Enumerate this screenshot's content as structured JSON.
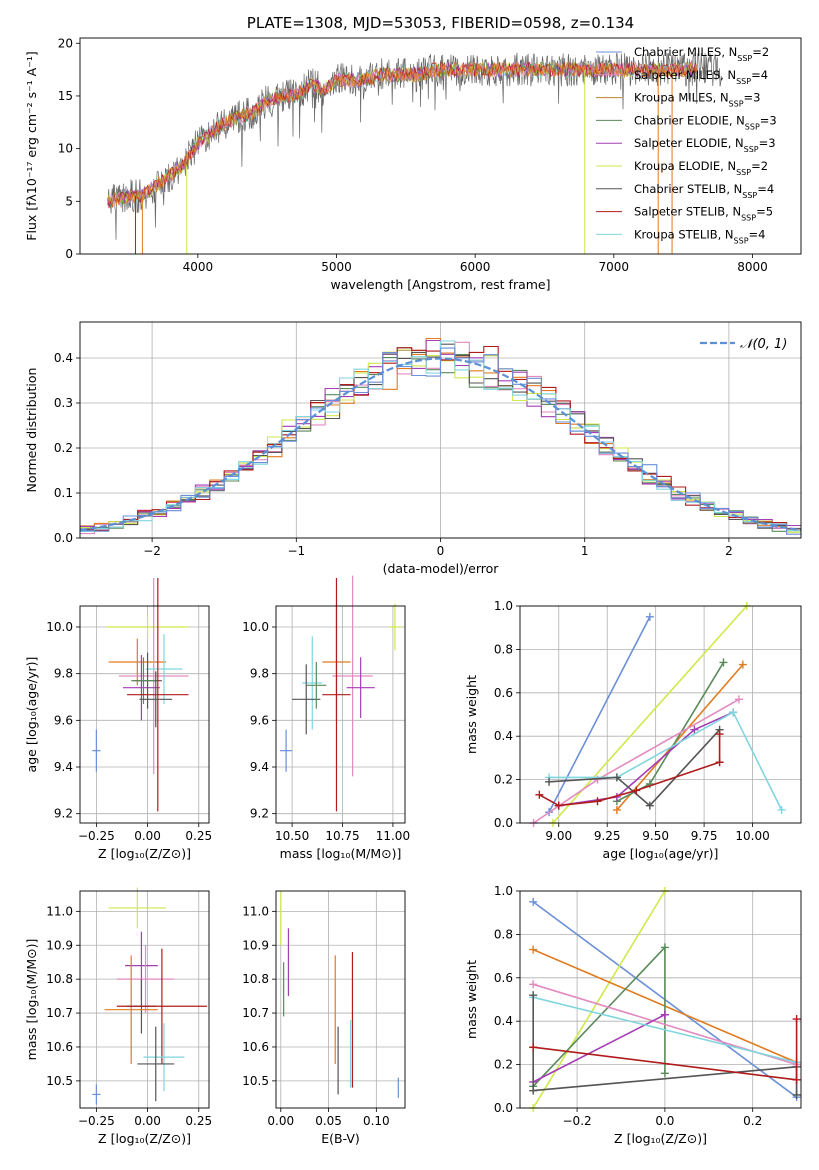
{
  "title": "PLATE=1308, MJD=53053, FIBERID=0598, z=0.134",
  "colors": {
    "c0": "#6b8fd8",
    "c1": "#e07b20",
    "c2": "#b8862a",
    "c3": "#5a8a5a",
    "c4": "#a53db5",
    "c5": "#cfe84a",
    "c6": "#555555",
    "c7": "#b01b1b",
    "c8": "#7fd6df",
    "c9": "#e38bc0"
  },
  "spectrum": {
    "xlabel": "wavelength [Angstrom, rest frame]",
    "ylabel": "Flux [fλ10⁻¹⁷ erg cm⁻² s⁻¹ A⁻¹]",
    "xticks": [
      "4000",
      "5000",
      "6000",
      "7000",
      "8000"
    ],
    "yticks": [
      "0",
      "5",
      "10",
      "15",
      "20"
    ],
    "legend": [
      {
        "text": "Chabrier MILES, N",
        "sub": "SSP",
        "tail": "=2",
        "color": "#6b8fd8"
      },
      {
        "text": "Salpeter MILES, N",
        "sub": "SSP",
        "tail": "=4",
        "color": "#e38bc0"
      },
      {
        "text": "Kroupa MILES, N",
        "sub": "SSP",
        "tail": "=3",
        "color": "#b8862a"
      },
      {
        "text": "Chabrier ELODIE, N",
        "sub": "SSP",
        "tail": "=3",
        "color": "#5a8a5a"
      },
      {
        "text": "Salpeter ELODIE, N",
        "sub": "SSP",
        "tail": "=3",
        "color": "#a53db5"
      },
      {
        "text": "Kroupa ELODIE, N",
        "sub": "SSP",
        "tail": "=2",
        "color": "#cfe84a"
      },
      {
        "text": "Chabrier STELIB, N",
        "sub": "SSP",
        "tail": "=4",
        "color": "#555555"
      },
      {
        "text": "Salpeter STELIB, N",
        "sub": "SSP",
        "tail": "=5",
        "color": "#b01b1b"
      },
      {
        "text": "Kroupa STELIB, N",
        "sub": "SSP",
        "tail": "=4",
        "color": "#7fd6df"
      }
    ]
  },
  "residuals": {
    "xlabel": "(data-model)/error",
    "ylabel": "Normed distribution",
    "xticks": [
      "−2",
      "−1",
      "0",
      "1",
      "2"
    ],
    "yticks": [
      "0.0",
      "0.1",
      "0.2",
      "0.3",
      "0.4"
    ],
    "legend": "𝒩(0, 1)"
  },
  "p3": {
    "xlabel": "Z [log₁₀(Z/Z⊙)]",
    "ylabel": "age  [log₁₀(age/yr)]",
    "xticks": [
      "−0.25",
      "0.00",
      "0.25"
    ],
    "yticks": [
      "9.2",
      "9.4",
      "9.6",
      "9.8",
      "10.0"
    ]
  },
  "p4": {
    "xlabel": "mass [log₁₀(M/M⊙)]",
    "xticks": [
      "10.50",
      "10.75",
      "11.00"
    ],
    "yticks": [
      "9.2",
      "9.4",
      "9.6",
      "9.8",
      "10.0"
    ]
  },
  "p5": {
    "xlabel": "age  [log₁₀(age/yr)]",
    "ylabel": "mass weight",
    "xticks": [
      "9.00",
      "9.25",
      "9.50",
      "9.75",
      "10.00"
    ],
    "yticks": [
      "0.0",
      "0.2",
      "0.4",
      "0.6",
      "0.8",
      "1.0"
    ]
  },
  "p6": {
    "xlabel": "Z [log₁₀(Z/Z⊙)]",
    "ylabel": "mass [log₁₀(M/M⊙)]",
    "xticks": [
      "−0.25",
      "0.00",
      "0.25"
    ],
    "yticks": [
      "10.5",
      "10.6",
      "10.7",
      "10.8",
      "10.9",
      "11.0"
    ]
  },
  "p7": {
    "xlabel": "E(B-V)",
    "xticks": [
      "0.00",
      "0.05",
      "0.10"
    ],
    "yticks": [
      "10.5",
      "10.6",
      "10.7",
      "10.8",
      "10.9",
      "11.0"
    ]
  },
  "p8": {
    "xlabel": "Z [log₁₀(Z/Z⊙)]",
    "ylabel": "mass weight",
    "xticks": [
      "−0.2",
      "0.0",
      "0.2"
    ],
    "yticks": [
      "0.0",
      "0.2",
      "0.4",
      "0.6",
      "0.8",
      "1.0"
    ]
  },
  "chart_data": [
    {
      "type": "line",
      "title": "PLATE=1308, MJD=53053, FIBERID=0598, z=0.134",
      "xlabel": "wavelength [Angstrom, rest frame]",
      "ylabel": "Flux [fλ10^-17 erg cm^-2 s^-1 A^-1]",
      "xlim": [
        3150,
        8350
      ],
      "ylim": [
        0,
        20.5
      ],
      "anchors_x": [
        3350,
        3500,
        3600,
        3700,
        3800,
        3900,
        4000,
        4100,
        4200,
        4300,
        4400,
        4500,
        4600,
        4700,
        4800,
        4850,
        4900,
        5000,
        5100,
        5200,
        5300,
        5400,
        5500,
        5600,
        5700,
        5800,
        5900,
        6000,
        6100,
        6200,
        6300,
        6400,
        6500,
        6600,
        6700,
        6800,
        6900,
        7000,
        7100,
        7200,
        7300,
        7400,
        7500,
        7600,
        7700,
        7800
      ],
      "anchors_y": [
        5.0,
        5.5,
        5.5,
        6.5,
        7.5,
        8.5,
        10.5,
        11.5,
        12.5,
        13.0,
        13.5,
        14.5,
        15.0,
        15.0,
        16.0,
        16.0,
        15.5,
        16.5,
        16.5,
        16.5,
        17.0,
        17.0,
        17.0,
        17.0,
        17.5,
        17.5,
        17.5,
        17.5,
        17.5,
        17.5,
        17.5,
        17.5,
        17.5,
        17.5,
        17.5,
        17.5,
        17.5,
        17.5,
        17.5,
        17.5,
        17.5,
        17.5,
        17.5,
        17.5,
        17.5,
        17.5
      ],
      "series": [
        {
          "name": "Chabrier MILES, NSSP=2"
        },
        {
          "name": "Salpeter MILES, NSSP=4"
        },
        {
          "name": "Kroupa MILES, NSSP=3"
        },
        {
          "name": "Chabrier ELODIE, NSSP=3"
        },
        {
          "name": "Salpeter ELODIE, NSSP=3"
        },
        {
          "name": "Kroupa ELODIE, NSSP=2"
        },
        {
          "name": "Chabrier STELIB, NSSP=4"
        },
        {
          "name": "Salpeter STELIB, NSSP=5"
        },
        {
          "name": "Kroupa STELIB, NSSP=4"
        }
      ]
    },
    {
      "type": "line",
      "xlabel": "(data-model)/error",
      "ylabel": "Normed distribution",
      "xlim": [
        -2.5,
        2.5
      ],
      "ylim": [
        0,
        0.48
      ],
      "bin_width": 0.1,
      "normal_curve": {
        "name": "N(0,1)",
        "mean": 0,
        "sigma": 1
      }
    },
    {
      "type": "scatter",
      "xlabel": "Z [log10(Z/Zsun)]",
      "ylabel": "age [log10(age/yr)]",
      "xlim": [
        -0.33,
        0.3
      ],
      "ylim": [
        9.16,
        10.09
      ],
      "points": [
        {
          "c": "c0",
          "x": -0.25,
          "y": 9.47,
          "dx": 0.02,
          "dy": 0.09
        },
        {
          "c": "c5",
          "x": 0.0,
          "y": 10.0,
          "dx": 0.2,
          "dy": 0.05
        },
        {
          "c": "c1",
          "x": -0.05,
          "y": 9.85,
          "dx": 0.14,
          "dy": 0.1
        },
        {
          "c": "c9",
          "x": 0.03,
          "y": 9.79,
          "dx": 0.17,
          "dy": 0.42
        },
        {
          "c": "c8",
          "x": 0.08,
          "y": 9.82,
          "dx": 0.09,
          "dy": 0.15
        },
        {
          "c": "c4",
          "x": -0.03,
          "y": 9.74,
          "dx": 0.09,
          "dy": 0.14
        },
        {
          "c": "c6",
          "x": 0.0,
          "y": 9.77,
          "dx": 0.07,
          "dy": 0.12
        },
        {
          "c": "c3",
          "x": -0.02,
          "y": 9.77,
          "dx": 0.06,
          "dy": 0.1
        },
        {
          "c": "c7",
          "x": 0.05,
          "y": 9.71,
          "dx": 0.15,
          "dy": 0.5
        },
        {
          "c": "c6",
          "x": 0.04,
          "y": 9.69,
          "dx": 0.08,
          "dy": 0.12
        }
      ]
    },
    {
      "type": "scatter",
      "xlabel": "mass [log10(M/Msun)]",
      "ylabel": "",
      "xlim": [
        10.42,
        11.06
      ],
      "ylim": [
        9.16,
        10.09
      ],
      "points": [
        {
          "c": "c0",
          "x": 10.47,
          "y": 9.47,
          "dx": 0.03,
          "dy": 0.09
        },
        {
          "c": "c5",
          "x": 11.01,
          "y": 10.0,
          "dx": 0.03,
          "dy": 0.1
        },
        {
          "c": "c8",
          "x": 10.6,
          "y": 9.76,
          "dx": 0.05,
          "dy": 0.2
        },
        {
          "c": "c1",
          "x": 10.72,
          "y": 9.85,
          "dx": 0.07,
          "dy": 0.25
        },
        {
          "c": "c6",
          "x": 10.57,
          "y": 9.69,
          "dx": 0.07,
          "dy": 0.15
        },
        {
          "c": "c9",
          "x": 10.8,
          "y": 9.79,
          "dx": 0.1,
          "dy": 0.43
        },
        {
          "c": "c7",
          "x": 10.72,
          "y": 9.71,
          "dx": 0.07,
          "dy": 0.5
        },
        {
          "c": "c4",
          "x": 10.84,
          "y": 9.74,
          "dx": 0.07,
          "dy": 0.13
        },
        {
          "c": "c3",
          "x": 10.62,
          "y": 9.75,
          "dx": 0.05,
          "dy": 0.1
        }
      ]
    },
    {
      "type": "line",
      "xlabel": "age [log10(age/yr)]",
      "ylabel": "mass weight",
      "xlim": [
        8.8,
        10.25
      ],
      "ylim": [
        0,
        1
      ],
      "series": [
        {
          "c": "c0",
          "x": [
            8.95,
            9.47
          ],
          "y": [
            0.05,
            0.95
          ]
        },
        {
          "c": "c5",
          "x": [
            8.97,
            9.97
          ],
          "y": [
            0.0,
            1.0
          ]
        },
        {
          "c": "c1",
          "x": [
            9.3,
            9.95
          ],
          "y": [
            0.06,
            0.73
          ]
        },
        {
          "c": "c3",
          "x": [
            9.3,
            9.47,
            9.85
          ],
          "y": [
            0.1,
            0.18,
            0.74
          ]
        },
        {
          "c": "c9",
          "x": [
            8.87,
            9.2,
            9.93
          ],
          "y": [
            0.0,
            0.2,
            0.57
          ]
        },
        {
          "c": "c4",
          "x": [
            9.0,
            9.3,
            9.7,
            9.9
          ],
          "y": [
            0.08,
            0.12,
            0.43,
            0.51
          ]
        },
        {
          "c": "c8",
          "x": [
            8.95,
            9.3,
            9.9,
            10.15
          ],
          "y": [
            0.21,
            0.21,
            0.51,
            0.06
          ]
        },
        {
          "c": "c6",
          "x": [
            8.95,
            9.3,
            9.47,
            9.83
          ],
          "y": [
            0.19,
            0.21,
            0.08,
            0.43
          ]
        },
        {
          "c": "c7",
          "x": [
            8.9,
            9.0,
            9.2,
            9.4,
            9.83,
            9.83
          ],
          "y": [
            0.13,
            0.08,
            0.1,
            0.15,
            0.28,
            0.41
          ]
        }
      ]
    },
    {
      "type": "scatter",
      "xlabel": "Z [log10(Z/Zsun)]",
      "ylabel": "mass [log10(M/Msun)]",
      "xlim": [
        -0.33,
        0.3
      ],
      "ylim": [
        10.42,
        11.06
      ],
      "points": [
        {
          "c": "c0",
          "x": -0.25,
          "y": 10.46,
          "dx": 0.02,
          "dy": 0.03
        },
        {
          "c": "c5",
          "x": -0.05,
          "y": 11.01,
          "dx": 0.14,
          "dy": 0.06
        },
        {
          "c": "c4",
          "x": -0.03,
          "y": 10.84,
          "dx": 0.08,
          "dy": 0.1
        },
        {
          "c": "c9",
          "x": -0.01,
          "y": 10.8,
          "dx": 0.14,
          "dy": 0.1
        },
        {
          "c": "c6",
          "x": -0.03,
          "y": 10.72,
          "dx": 0.07,
          "dy": 0.08
        },
        {
          "c": "c1",
          "x": -0.08,
          "y": 10.71,
          "dx": 0.13,
          "dy": 0.16
        },
        {
          "c": "c7",
          "x": 0.07,
          "y": 10.72,
          "dx": 0.22,
          "dy": 0.17
        },
        {
          "c": "c8",
          "x": 0.08,
          "y": 10.57,
          "dx": 0.1,
          "dy": 0.1
        },
        {
          "c": "c6",
          "x": 0.04,
          "y": 10.55,
          "dx": 0.09,
          "dy": 0.11
        }
      ]
    },
    {
      "type": "scatter",
      "xlabel": "E(B-V)",
      "ylabel": "",
      "xlim": [
        -0.005,
        0.13
      ],
      "ylim": [
        10.42,
        11.06
      ],
      "points": [
        {
          "c": "c5",
          "x": 0.0,
          "y": 10.98,
          "dx": 0.0,
          "dy": 0.08
        },
        {
          "c": "c4",
          "x": 0.008,
          "y": 10.85,
          "dx": 0.0,
          "dy": 0.1
        },
        {
          "c": "c3",
          "x": 0.003,
          "y": 10.77,
          "dx": 0.0,
          "dy": 0.08
        },
        {
          "c": "c1",
          "x": 0.057,
          "y": 10.71,
          "dx": 0.0,
          "dy": 0.16
        },
        {
          "c": "c6",
          "x": 0.06,
          "y": 10.56,
          "dx": 0.0,
          "dy": 0.1
        },
        {
          "c": "c7",
          "x": 0.075,
          "y": 10.68,
          "dx": 0.0,
          "dy": 0.2
        },
        {
          "c": "c8",
          "x": 0.073,
          "y": 10.58,
          "dx": 0.0,
          "dy": 0.1
        },
        {
          "c": "c0",
          "x": 0.123,
          "y": 10.48,
          "dx": 0.0,
          "dy": 0.03
        }
      ]
    },
    {
      "type": "line",
      "xlabel": "Z [log10(Z/Zsun)]",
      "ylabel": "mass weight",
      "xlim": [
        -0.33,
        0.31
      ],
      "ylim": [
        0,
        1
      ],
      "series": [
        {
          "c": "c0",
          "x": [
            -0.3,
            0.3
          ],
          "y": [
            0.95,
            0.05
          ]
        },
        {
          "c": "c5",
          "x": [
            -0.3,
            0.0
          ],
          "y": [
            0.0,
            1.0
          ]
        },
        {
          "c": "c1",
          "x": [
            -0.3,
            0.3
          ],
          "y": [
            0.73,
            0.21
          ]
        },
        {
          "c": "c3",
          "x": [
            -0.3,
            0.0,
            0.0
          ],
          "y": [
            0.1,
            0.74,
            0.16
          ]
        },
        {
          "c": "c9",
          "x": [
            -0.3,
            0.3
          ],
          "y": [
            0.57,
            0.2
          ]
        },
        {
          "c": "c4",
          "x": [
            -0.3,
            0.0,
            0.0
          ],
          "y": [
            0.12,
            0.43,
            0.43
          ]
        },
        {
          "c": "c8",
          "x": [
            -0.3,
            0.3,
            0.3
          ],
          "y": [
            0.51,
            0.21,
            0.06
          ]
        },
        {
          "c": "c6",
          "x": [
            -0.3,
            -0.3,
            0.3,
            0.3
          ],
          "y": [
            0.52,
            0.08,
            0.19,
            0.06
          ]
        },
        {
          "c": "c7",
          "x": [
            -0.3,
            0.3,
            0.3
          ],
          "y": [
            0.28,
            0.13,
            0.41
          ]
        }
      ]
    }
  ]
}
